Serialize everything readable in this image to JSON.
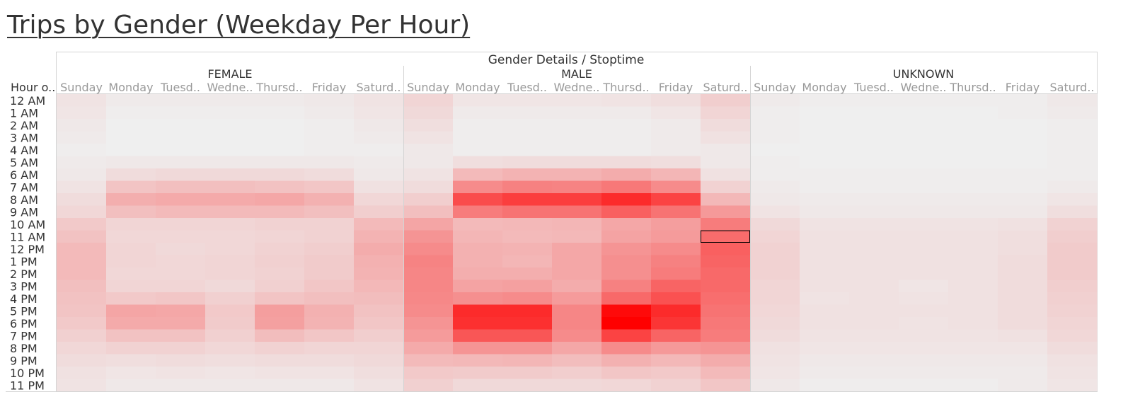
{
  "title": "Trips by Gender (Weekday Per Hour)",
  "colors": {
    "low": "#efefef",
    "high": "#ff0000",
    "grid": "#d4d4d4",
    "text": "#333333",
    "day_text": "#999999"
  },
  "chart_data": {
    "type": "heatmap",
    "title": "Trips by Gender (Weekday Per Hour)",
    "column_header": "Gender Details / Stoptime",
    "row_header": "Hour o..",
    "groups": [
      "FEMALE",
      "MALE",
      "UNKNOWN"
    ],
    "columns": [
      "Sunday",
      "Monday",
      "Tuesd..",
      "Wedne..",
      "Thursd..",
      "Friday",
      "Saturd.."
    ],
    "rows": [
      "12 AM",
      "1 AM",
      "2 AM",
      "3 AM",
      "4 AM",
      "5 AM",
      "6 AM",
      "7 AM",
      "8 AM",
      "9 AM",
      "10 AM",
      "11 AM",
      "12 PM",
      "1 PM",
      "2 PM",
      "3 PM",
      "4 PM",
      "5 PM",
      "6 PM",
      "7 PM",
      "8 PM",
      "9 PM",
      "10 PM",
      "11 PM"
    ],
    "value_range": [
      0,
      100
    ],
    "highlighted_cell": {
      "group": "MALE",
      "column": "Saturd..",
      "row": "11 AM"
    },
    "values": {
      "FEMALE": [
        [
          5,
          2,
          2,
          2,
          2,
          3,
          5
        ],
        [
          4,
          1,
          1,
          1,
          1,
          2,
          4
        ],
        [
          3,
          0,
          0,
          0,
          0,
          1,
          3
        ],
        [
          2,
          0,
          0,
          0,
          0,
          1,
          2
        ],
        [
          1,
          0,
          0,
          0,
          0,
          1,
          1
        ],
        [
          2,
          3,
          3,
          3,
          3,
          3,
          2
        ],
        [
          3,
          8,
          9,
          9,
          9,
          8,
          3
        ],
        [
          5,
          18,
          20,
          20,
          19,
          17,
          6
        ],
        [
          8,
          27,
          29,
          29,
          30,
          26,
          10
        ],
        [
          10,
          20,
          22,
          22,
          22,
          20,
          14
        ],
        [
          16,
          11,
          11,
          11,
          12,
          12,
          22
        ],
        [
          19,
          10,
          10,
          10,
          11,
          12,
          25
        ],
        [
          22,
          11,
          9,
          10,
          12,
          14,
          28
        ],
        [
          22,
          11,
          10,
          11,
          13,
          15,
          26
        ],
        [
          22,
          10,
          10,
          11,
          12,
          15,
          25
        ],
        [
          20,
          11,
          11,
          9,
          13,
          17,
          23
        ],
        [
          19,
          16,
          17,
          13,
          18,
          20,
          21
        ],
        [
          18,
          31,
          30,
          16,
          34,
          26,
          19
        ],
        [
          16,
          29,
          29,
          15,
          33,
          25,
          17
        ],
        [
          13,
          19,
          19,
          13,
          21,
          17,
          14
        ],
        [
          10,
          12,
          12,
          10,
          12,
          11,
          11
        ],
        [
          8,
          7,
          8,
          7,
          8,
          8,
          9
        ],
        [
          6,
          4,
          5,
          4,
          5,
          5,
          7
        ],
        [
          5,
          3,
          3,
          3,
          3,
          3,
          5
        ]
      ],
      "MALE": [
        [
          11,
          4,
          4,
          4,
          5,
          7,
          14
        ],
        [
          9,
          2,
          2,
          2,
          2,
          4,
          11
        ],
        [
          7,
          1,
          1,
          1,
          1,
          2,
          8
        ],
        [
          5,
          1,
          1,
          1,
          1,
          2,
          6
        ],
        [
          3,
          1,
          1,
          1,
          1,
          2,
          3
        ],
        [
          3,
          7,
          8,
          8,
          8,
          7,
          3
        ],
        [
          5,
          22,
          25,
          25,
          28,
          24,
          6
        ],
        [
          8,
          42,
          46,
          45,
          50,
          42,
          12
        ],
        [
          14,
          68,
          74,
          74,
          82,
          72,
          23
        ],
        [
          20,
          48,
          52,
          52,
          60,
          52,
          36
        ],
        [
          31,
          22,
          23,
          24,
          30,
          34,
          48
        ],
        [
          38,
          24,
          22,
          23,
          32,
          35,
          55
        ],
        [
          42,
          26,
          25,
          30,
          38,
          42,
          60
        ],
        [
          45,
          26,
          24,
          30,
          40,
          46,
          58
        ],
        [
          44,
          27,
          27,
          30,
          40,
          48,
          56
        ],
        [
          44,
          32,
          33,
          28,
          46,
          58,
          56
        ],
        [
          43,
          40,
          42,
          35,
          56,
          66,
          54
        ],
        [
          42,
          82,
          82,
          44,
          96,
          82,
          52
        ],
        [
          38,
          80,
          80,
          44,
          100,
          78,
          50
        ],
        [
          35,
          64,
          64,
          42,
          72,
          58,
          48
        ],
        [
          29,
          38,
          38,
          30,
          42,
          36,
          38
        ],
        [
          22,
          23,
          24,
          21,
          26,
          23,
          28
        ],
        [
          16,
          15,
          15,
          14,
          17,
          16,
          22
        ],
        [
          13,
          9,
          9,
          9,
          10,
          12,
          17
        ]
      ],
      "UNKNOWN": [
        [
          2,
          1,
          1,
          1,
          1,
          1,
          3
        ],
        [
          1,
          0,
          0,
          0,
          0,
          1,
          2
        ],
        [
          1,
          0,
          0,
          0,
          0,
          0,
          1
        ],
        [
          1,
          0,
          0,
          0,
          0,
          0,
          1
        ],
        [
          0,
          0,
          0,
          0,
          0,
          0,
          1
        ],
        [
          1,
          0,
          0,
          0,
          0,
          0,
          1
        ],
        [
          1,
          1,
          1,
          1,
          1,
          1,
          1
        ],
        [
          2,
          1,
          1,
          1,
          1,
          1,
          2
        ],
        [
          3,
          2,
          2,
          2,
          2,
          2,
          4
        ],
        [
          5,
          3,
          3,
          3,
          3,
          3,
          7
        ],
        [
          9,
          5,
          5,
          5,
          5,
          6,
          12
        ],
        [
          11,
          6,
          6,
          6,
          6,
          7,
          14
        ],
        [
          12,
          6,
          6,
          6,
          6,
          7,
          15
        ],
        [
          12,
          6,
          6,
          6,
          6,
          8,
          15
        ],
        [
          12,
          6,
          6,
          6,
          6,
          8,
          15
        ],
        [
          11,
          6,
          6,
          4,
          6,
          8,
          14
        ],
        [
          11,
          5,
          6,
          5,
          6,
          8,
          13
        ],
        [
          10,
          6,
          6,
          6,
          6,
          8,
          12
        ],
        [
          9,
          6,
          6,
          5,
          6,
          8,
          11
        ],
        [
          8,
          5,
          5,
          5,
          5,
          6,
          10
        ],
        [
          6,
          4,
          4,
          4,
          4,
          4,
          8
        ],
        [
          5,
          3,
          3,
          3,
          3,
          3,
          6
        ],
        [
          4,
          2,
          2,
          2,
          2,
          2,
          5
        ],
        [
          3,
          1,
          1,
          1,
          1,
          2,
          4
        ]
      ]
    }
  }
}
